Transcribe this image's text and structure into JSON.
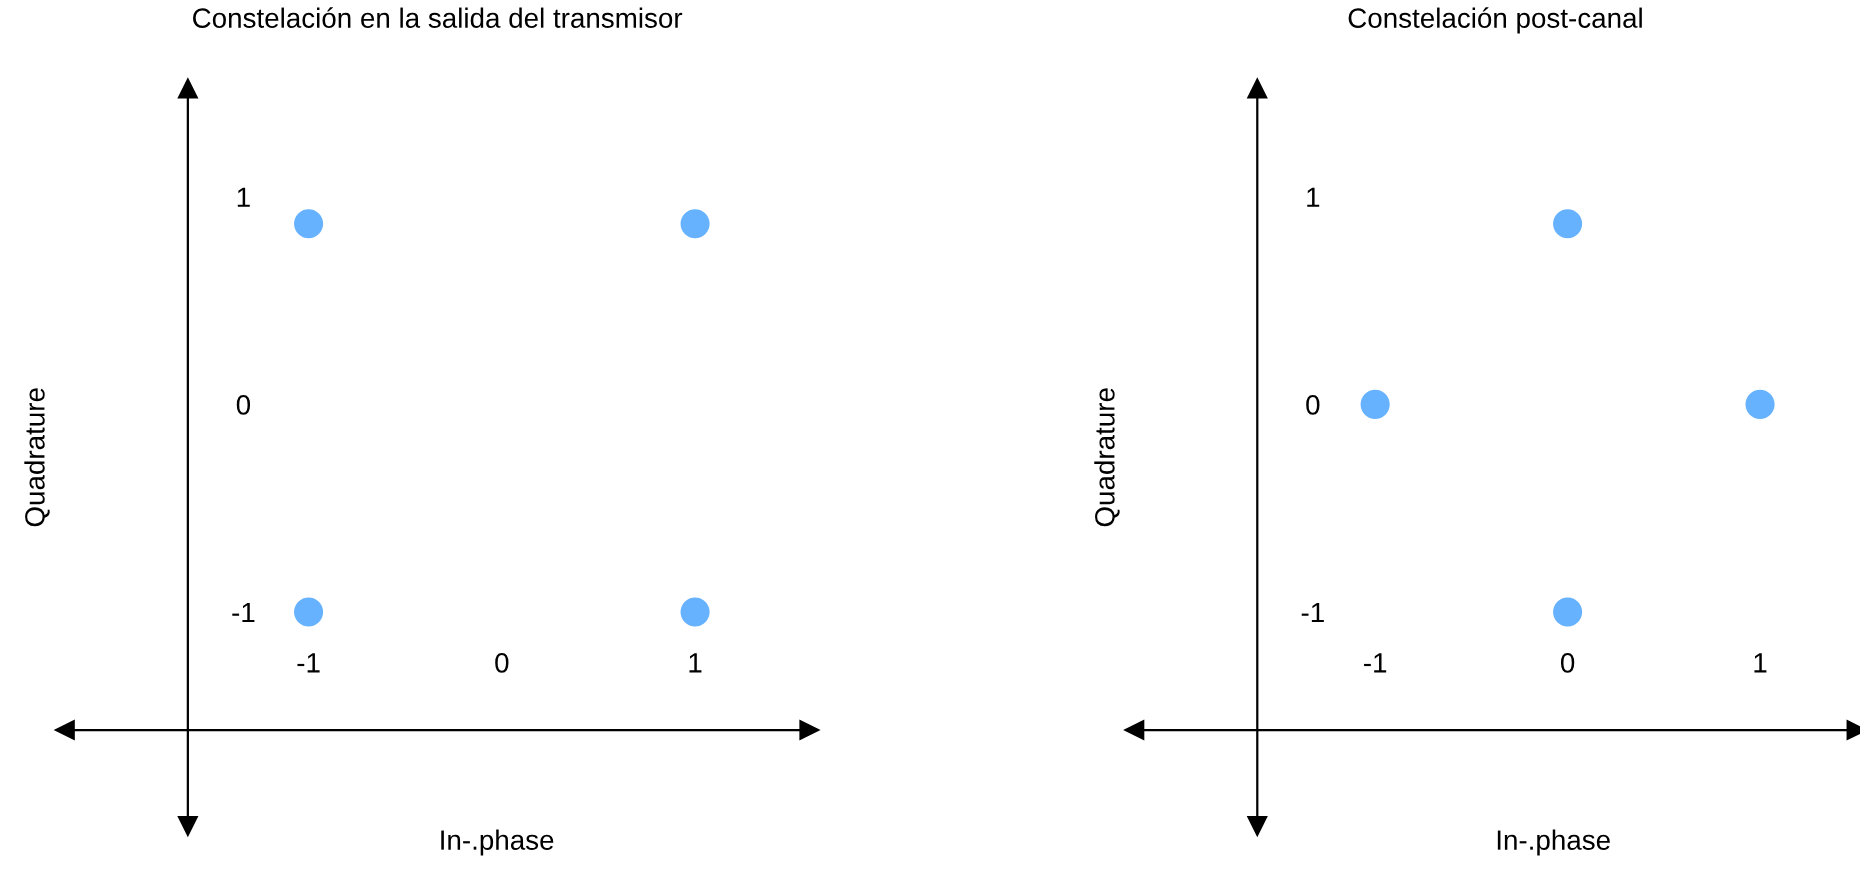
{
  "chart_data": [
    {
      "type": "scatter",
      "title": "Constelación en la salida del transmisor",
      "xlabel": "In-.phase",
      "ylabel": "Quadrature",
      "marker": "circle",
      "grid": false,
      "xlim": [
        -2.26,
        1.59
      ],
      "ylim": [
        -2.03,
        1.52
      ],
      "xticks": [
        -1,
        0,
        1
      ],
      "yticks": [
        -1,
        0,
        1
      ],
      "series": [
        {
          "color": "#66b2ff",
          "x": [
            -1,
            1,
            -1,
            1
          ],
          "values": [
            0.87,
            0.87,
            -1,
            -1
          ]
        }
      ]
    },
    {
      "type": "scatter",
      "title": "Constelación post-canal",
      "xlabel": "In-.phase",
      "ylabel": "Quadrature",
      "marker": "circle",
      "grid": false,
      "xlim": [
        -2.25,
        1.5
      ],
      "ylim": [
        -2.03,
        1.52
      ],
      "xticks": [
        -1,
        0,
        1
      ],
      "yticks": [
        -1,
        0,
        1
      ],
      "series": [
        {
          "color": "#66b2ff",
          "x": [
            0,
            -1,
            1,
            0
          ],
          "values": [
            0.87,
            0,
            0,
            -1
          ]
        }
      ]
    }
  ]
}
